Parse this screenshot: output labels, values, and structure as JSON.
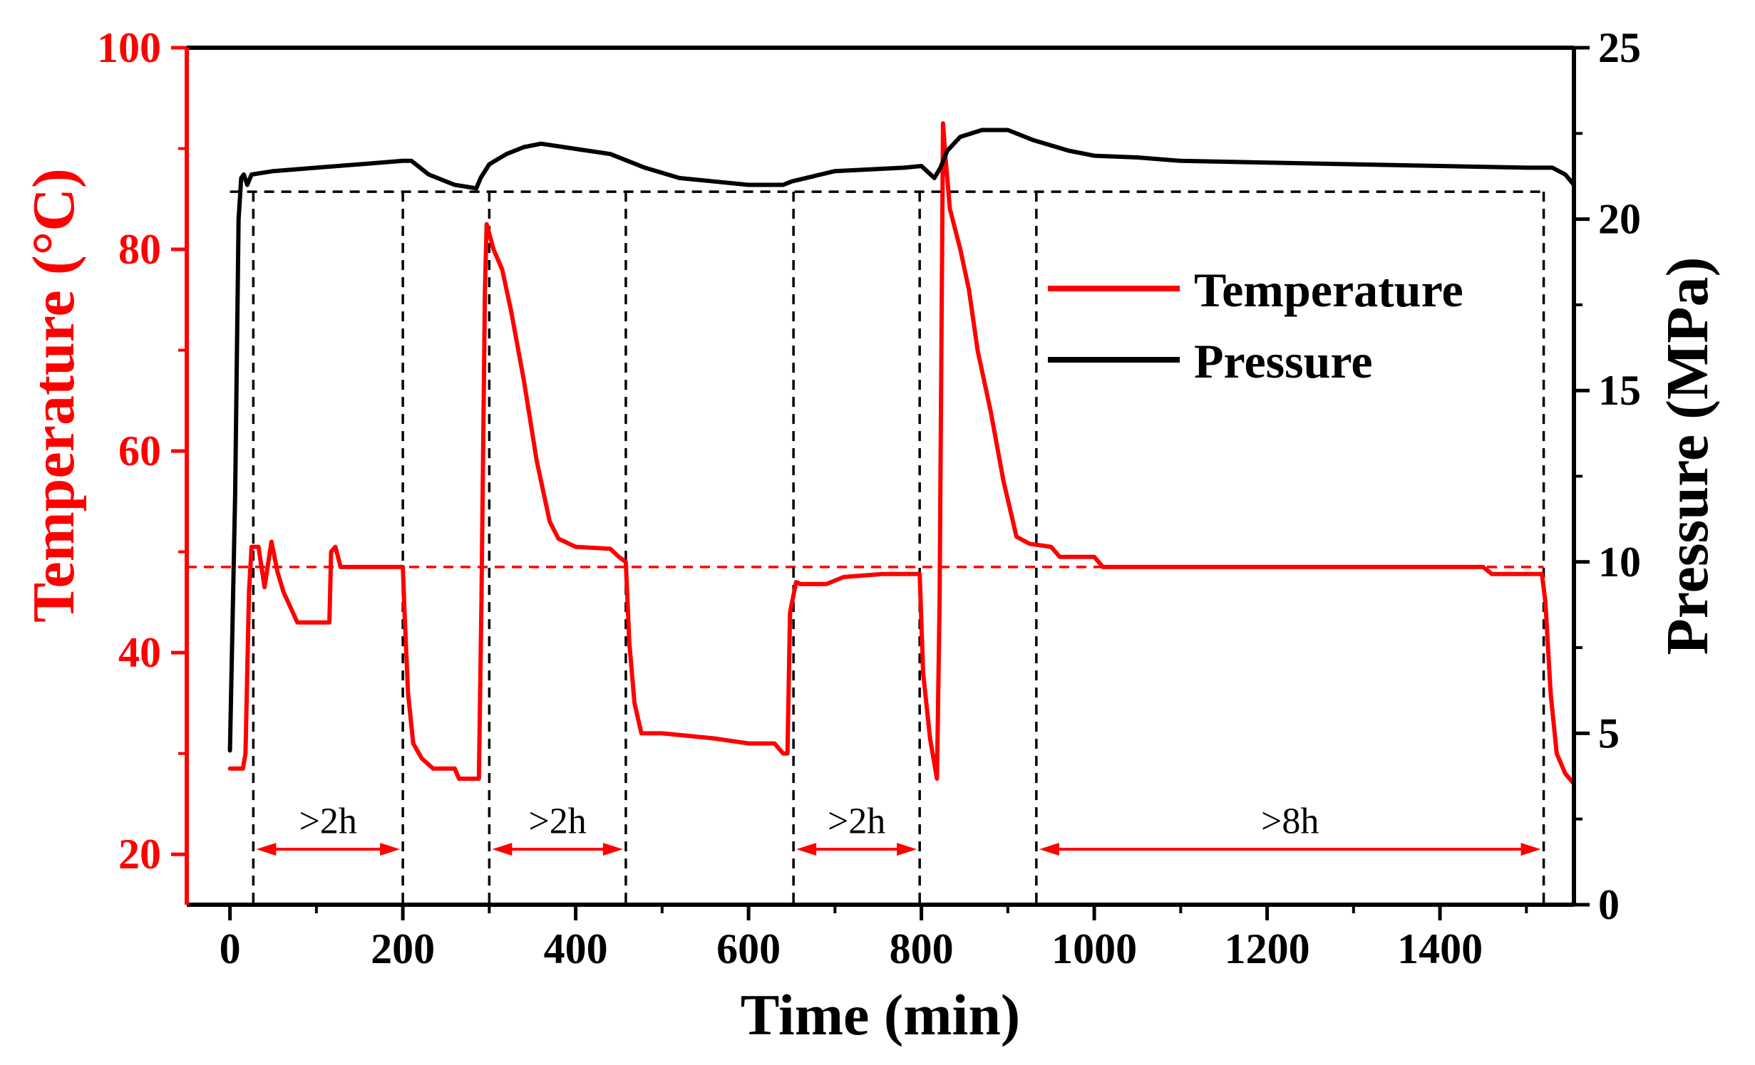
{
  "chart_data": {
    "type": "line",
    "title": "",
    "xlabel": "Time (min)",
    "ylabel_left": "Temperature (°C)",
    "ylabel_right": "Pressure (MPa)",
    "xlim": [
      -50,
      1555
    ],
    "ylim_left": [
      15,
      100
    ],
    "ylim_right": [
      0,
      25
    ],
    "xticks": [
      0,
      200,
      400,
      600,
      800,
      1000,
      1200,
      1400
    ],
    "yticks_left": [
      20,
      40,
      60,
      80,
      100
    ],
    "yticks_right": [
      0,
      5,
      10,
      15,
      20,
      25
    ],
    "legend": {
      "placement": "top-right",
      "entries": [
        "Temperature",
        "Pressure"
      ]
    },
    "colors": {
      "temperature": "#ff0000",
      "pressure": "#000000",
      "left_axis": "#ff0000",
      "right_axis": "#000000"
    },
    "series": [
      {
        "name": "Temperature",
        "axis": "left",
        "color": "#ff0000",
        "points": [
          [
            0,
            28.5
          ],
          [
            15,
            28.5
          ],
          [
            18,
            30
          ],
          [
            22,
            46
          ],
          [
            25,
            50.5
          ],
          [
            33,
            50.5
          ],
          [
            40,
            46.5
          ],
          [
            48,
            51
          ],
          [
            55,
            48
          ],
          [
            62,
            46
          ],
          [
            70,
            44.5
          ],
          [
            78,
            43
          ],
          [
            110,
            43
          ],
          [
            115,
            43
          ],
          [
            117,
            50
          ],
          [
            122,
            50.5
          ],
          [
            128,
            48.5
          ],
          [
            200,
            48.5
          ],
          [
            202,
            44
          ],
          [
            206,
            36
          ],
          [
            212,
            31
          ],
          [
            222,
            29.5
          ],
          [
            235,
            28.5
          ],
          [
            260,
            28.5
          ],
          [
            265,
            27.5
          ],
          [
            288,
            27.5
          ],
          [
            291,
            45
          ],
          [
            295,
            76
          ],
          [
            297,
            82.5
          ],
          [
            305,
            80
          ],
          [
            315,
            78
          ],
          [
            325,
            74
          ],
          [
            340,
            67
          ],
          [
            355,
            59
          ],
          [
            370,
            53
          ],
          [
            380,
            51.3
          ],
          [
            400,
            50.5
          ],
          [
            440,
            50.3
          ],
          [
            450,
            49.5
          ],
          [
            458,
            49
          ],
          [
            462,
            41
          ],
          [
            468,
            35
          ],
          [
            476,
            32
          ],
          [
            500,
            32
          ],
          [
            560,
            31.5
          ],
          [
            600,
            31
          ],
          [
            630,
            31
          ],
          [
            640,
            30
          ],
          [
            645,
            30
          ],
          [
            648,
            44
          ],
          [
            655,
            47
          ],
          [
            660,
            46.8
          ],
          [
            690,
            46.8
          ],
          [
            710,
            47.5
          ],
          [
            755,
            47.8
          ],
          [
            798,
            47.8
          ],
          [
            802,
            38
          ],
          [
            810,
            31.5
          ],
          [
            818,
            27.5
          ],
          [
            821,
            45
          ],
          [
            825,
            92.5
          ],
          [
            828,
            89
          ],
          [
            833,
            84
          ],
          [
            845,
            80
          ],
          [
            855,
            76
          ],
          [
            865,
            70
          ],
          [
            880,
            64
          ],
          [
            895,
            57
          ],
          [
            910,
            51.5
          ],
          [
            925,
            50.8
          ],
          [
            950,
            50.5
          ],
          [
            960,
            49.5
          ],
          [
            1000,
            49.5
          ],
          [
            1010,
            48.5
          ],
          [
            1450,
            48.5
          ],
          [
            1460,
            47.8
          ],
          [
            1518,
            47.8
          ],
          [
            1522,
            45
          ],
          [
            1528,
            36
          ],
          [
            1535,
            30
          ],
          [
            1545,
            28
          ],
          [
            1555,
            27
          ]
        ]
      },
      {
        "name": "Pressure",
        "axis": "right",
        "color": "#000000",
        "points": [
          [
            0,
            4.5
          ],
          [
            6,
            12
          ],
          [
            10,
            20
          ],
          [
            13,
            21.2
          ],
          [
            16,
            21.3
          ],
          [
            20,
            21
          ],
          [
            25,
            21.3
          ],
          [
            50,
            21.4
          ],
          [
            100,
            21.5
          ],
          [
            200,
            21.7
          ],
          [
            210,
            21.7
          ],
          [
            230,
            21.3
          ],
          [
            260,
            21
          ],
          [
            285,
            20.9
          ],
          [
            290,
            21.2
          ],
          [
            300,
            21.6
          ],
          [
            320,
            21.9
          ],
          [
            340,
            22.1
          ],
          [
            360,
            22.2
          ],
          [
            400,
            22.05
          ],
          [
            440,
            21.9
          ],
          [
            460,
            21.7
          ],
          [
            480,
            21.5
          ],
          [
            520,
            21.2
          ],
          [
            560,
            21.1
          ],
          [
            600,
            21.0
          ],
          [
            640,
            21.0
          ],
          [
            650,
            21.1
          ],
          [
            700,
            21.4
          ],
          [
            780,
            21.5
          ],
          [
            800,
            21.55
          ],
          [
            815,
            21.2
          ],
          [
            822,
            21.5
          ],
          [
            830,
            22.0
          ],
          [
            845,
            22.4
          ],
          [
            870,
            22.6
          ],
          [
            900,
            22.6
          ],
          [
            930,
            22.3
          ],
          [
            970,
            22.0
          ],
          [
            1000,
            21.85
          ],
          [
            1050,
            21.8
          ],
          [
            1100,
            21.7
          ],
          [
            1200,
            21.65
          ],
          [
            1300,
            21.6
          ],
          [
            1400,
            21.55
          ],
          [
            1500,
            21.5
          ],
          [
            1530,
            21.5
          ],
          [
            1545,
            21.3
          ],
          [
            1555,
            21.0
          ]
        ]
      }
    ],
    "reference_lines": [
      {
        "axis": "right",
        "value": 20.8,
        "style": "dashed",
        "color": "#000000",
        "x_range": [
          0,
          1520
        ]
      },
      {
        "axis": "left",
        "value": 48.5,
        "style": "dashed",
        "color": "#ff0000",
        "x_range": [
          -50,
          1520
        ]
      }
    ],
    "vertical_markers": [
      {
        "x": 27,
        "color": "#000000"
      },
      {
        "x": 200,
        "color": "#000000"
      },
      {
        "x": 300,
        "color": "#000000"
      },
      {
        "x": 458,
        "color": "#000000"
      },
      {
        "x": 652,
        "color": "#000000"
      },
      {
        "x": 798,
        "color": "#000000"
      },
      {
        "x": 933,
        "color": "#000000"
      },
      {
        "x": 1520,
        "color": "#000000"
      }
    ],
    "annotations": [
      {
        "text": ">2h",
        "x_start": 27,
        "x_end": 200,
        "arrow_y_left": 20.5,
        "text_y_left": 23.5,
        "color": "#ff0000"
      },
      {
        "text": ">2h",
        "x_start": 300,
        "x_end": 458,
        "arrow_y_left": 20.5,
        "text_y_left": 23.5,
        "color": "#ff0000"
      },
      {
        "text": ">2h",
        "x_start": 652,
        "x_end": 798,
        "arrow_y_left": 20.5,
        "text_y_left": 23.5,
        "color": "#ff0000"
      },
      {
        "text": ">8h",
        "x_start": 933,
        "x_end": 1520,
        "arrow_y_left": 20.5,
        "text_y_left": 23.5,
        "color": "#ff0000"
      }
    ]
  }
}
